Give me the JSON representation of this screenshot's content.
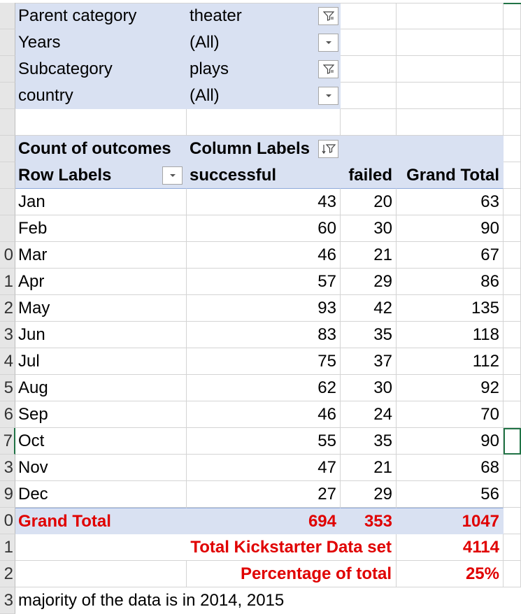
{
  "filters": [
    {
      "label": "Parent category",
      "value": "theater",
      "filtered": true
    },
    {
      "label": "Years",
      "value": "(All)",
      "filtered": false
    },
    {
      "label": "Subcategory",
      "value": "plays",
      "filtered": true
    },
    {
      "label": "country",
      "value": "(All)",
      "filtered": false
    }
  ],
  "pivot": {
    "values_label": "Count of outcomes",
    "column_labels": "Column Labels",
    "row_labels": "Row Labels",
    "col_successful": "successful",
    "col_failed": "failed",
    "col_grand_total": "Grand Total",
    "rows": [
      {
        "label": "Jan",
        "successful": "43",
        "failed": "20",
        "total": "63"
      },
      {
        "label": "Feb",
        "successful": "60",
        "failed": "30",
        "total": "90"
      },
      {
        "label": "Mar",
        "successful": "46",
        "failed": "21",
        "total": "67"
      },
      {
        "label": "Apr",
        "successful": "57",
        "failed": "29",
        "total": "86"
      },
      {
        "label": "May",
        "successful": "93",
        "failed": "42",
        "total": "135"
      },
      {
        "label": "Jun",
        "successful": "83",
        "failed": "35",
        "total": "118"
      },
      {
        "label": "Jul",
        "successful": "75",
        "failed": "37",
        "total": "112"
      },
      {
        "label": "Aug",
        "successful": "62",
        "failed": "30",
        "total": "92"
      },
      {
        "label": "Sep",
        "successful": "46",
        "failed": "24",
        "total": "70"
      },
      {
        "label": "Oct",
        "successful": "55",
        "failed": "35",
        "total": "90"
      },
      {
        "label": "Nov",
        "successful": "47",
        "failed": "21",
        "total": "68"
      },
      {
        "label": "Dec",
        "successful": "27",
        "failed": "29",
        "total": "56"
      }
    ],
    "grand_total": {
      "label": "Grand Total",
      "successful": "694",
      "failed": "353",
      "total": "1047"
    }
  },
  "summary": {
    "dataset_label": "Total Kickstarter Data set",
    "dataset_value": "4114",
    "percent_label": "Percentage of total",
    "percent_value": "25%"
  },
  "row_headers": [
    "",
    "",
    "",
    "",
    "",
    "",
    "",
    "",
    "",
    "0",
    "1",
    "2",
    "3",
    "4",
    "5",
    "6",
    "7",
    "3",
    "9",
    "0",
    "1",
    "2",
    "3"
  ],
  "note_partial": "majority of the data is in 2014, 2015"
}
